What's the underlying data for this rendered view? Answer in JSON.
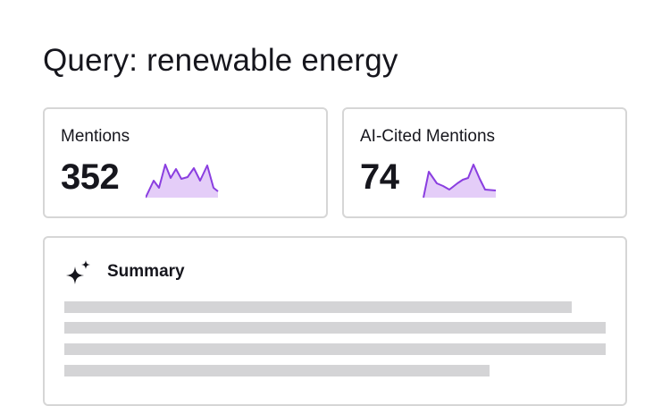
{
  "header": {
    "title": "Query: renewable energy"
  },
  "metrics": [
    {
      "label": "Mentions",
      "value": 352
    },
    {
      "label": "AI-Cited Mentions",
      "value": 74
    }
  ],
  "summary": {
    "title": "Summary"
  }
}
